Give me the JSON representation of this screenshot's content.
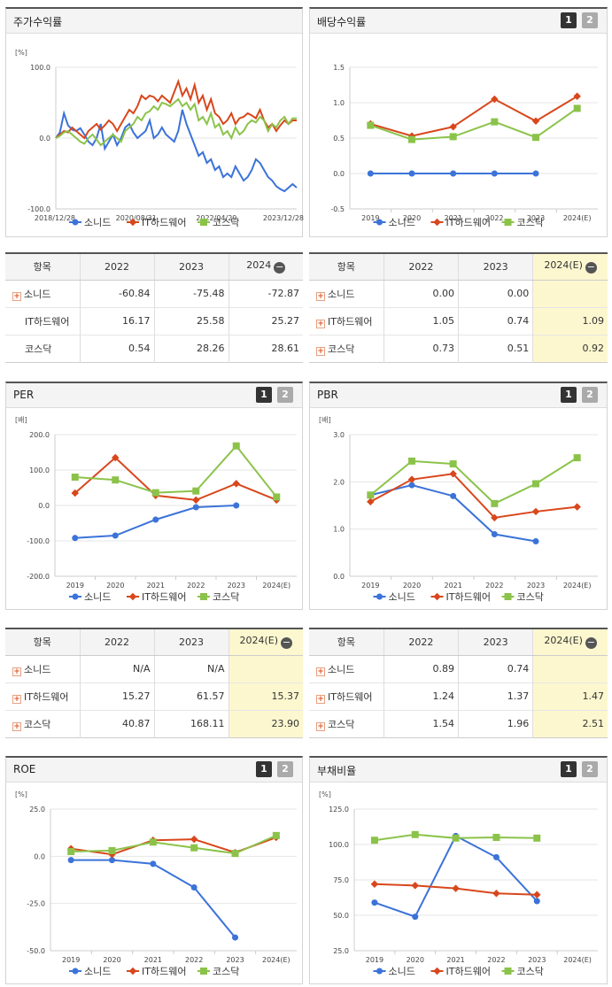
{
  "colors": {
    "series1": "#3b73d9",
    "series2": "#d8471c",
    "series3": "#8bc34a",
    "highlight": "#fdf7cf"
  },
  "legend_names": [
    "소니드",
    "IT하드웨어",
    "코스닥"
  ],
  "panels": {
    "stock": {
      "title": "주가수익률",
      "unit": "[%]"
    },
    "dividend": {
      "title": "배당수익률",
      "btn1": "1",
      "btn2": "2"
    },
    "per": {
      "title": "PER",
      "unit": "[배]",
      "btn1": "1",
      "btn2": "2"
    },
    "pbr": {
      "title": "PBR",
      "unit": "[배]",
      "btn1": "1",
      "btn2": "2"
    },
    "roe": {
      "title": "ROE",
      "unit": "[%]",
      "btn1": "1",
      "btn2": "2"
    },
    "debt": {
      "title": "부채비율",
      "unit": "[%]",
      "btn1": "1",
      "btn2": "2"
    }
  },
  "tables": {
    "stock": {
      "headers": [
        "항목",
        "2022",
        "2023",
        "2024"
      ],
      "rows": [
        {
          "name": "소니드",
          "plus": true,
          "vals": [
            "-60.84",
            "-75.48",
            "-72.87"
          ]
        },
        {
          "name": "IT하드웨어",
          "plus": false,
          "vals": [
            "16.17",
            "25.58",
            "25.27"
          ]
        },
        {
          "name": "코스닥",
          "plus": false,
          "vals": [
            "0.54",
            "28.26",
            "28.61"
          ]
        }
      ]
    },
    "dividend": {
      "headers": [
        "항목",
        "2022",
        "2023",
        "2024(E)"
      ],
      "rows": [
        {
          "name": "소니드",
          "plus": true,
          "vals": [
            "0.00",
            "0.00",
            ""
          ]
        },
        {
          "name": "IT하드웨어",
          "plus": true,
          "vals": [
            "1.05",
            "0.74",
            "1.09"
          ]
        },
        {
          "name": "코스닥",
          "plus": true,
          "vals": [
            "0.73",
            "0.51",
            "0.92"
          ]
        }
      ]
    },
    "per": {
      "headers": [
        "항목",
        "2022",
        "2023",
        "2024(E)"
      ],
      "rows": [
        {
          "name": "소니드",
          "plus": true,
          "vals": [
            "N/A",
            "N/A",
            ""
          ]
        },
        {
          "name": "IT하드웨어",
          "plus": true,
          "vals": [
            "15.27",
            "61.57",
            "15.37"
          ]
        },
        {
          "name": "코스닥",
          "plus": true,
          "vals": [
            "40.87",
            "168.11",
            "23.90"
          ]
        }
      ]
    },
    "pbr": {
      "headers": [
        "항목",
        "2022",
        "2023",
        "2024(E)"
      ],
      "rows": [
        {
          "name": "소니드",
          "plus": true,
          "vals": [
            "0.89",
            "0.74",
            ""
          ]
        },
        {
          "name": "IT하드웨어",
          "plus": true,
          "vals": [
            "1.24",
            "1.37",
            "1.47"
          ]
        },
        {
          "name": "코스닥",
          "plus": true,
          "vals": [
            "1.54",
            "1.96",
            "2.51"
          ]
        }
      ]
    }
  },
  "chart_data": [
    {
      "id": "stock",
      "type": "line",
      "title": "주가수익률",
      "ylabel": "[%]",
      "ylim": [
        -100,
        100
      ],
      "yticks": [
        "100.0",
        "0.0",
        "-100.0"
      ],
      "xticks": [
        "2018/12/28",
        "2020/08/31",
        "2022/04/29",
        "2023/12/28"
      ],
      "series": [
        {
          "name": "소니드",
          "values": [
            0,
            8,
            35,
            18,
            12,
            10,
            14,
            5,
            -5,
            -10,
            0,
            20,
            -15,
            -5,
            5,
            -10,
            0,
            15,
            20,
            8,
            0,
            5,
            10,
            25,
            0,
            5,
            15,
            5,
            0,
            -5,
            10,
            40,
            20,
            5,
            -10,
            -25,
            -20,
            -35,
            -30,
            -45,
            -40,
            -55,
            -50,
            -55,
            -40,
            -50,
            -60,
            -55,
            -45,
            -30,
            -35,
            -45,
            -55,
            -60,
            -68,
            -72,
            -75,
            -70,
            -65,
            -70
          ]
        },
        {
          "name": "IT하드웨어",
          "values": [
            0,
            5,
            10,
            8,
            15,
            10,
            5,
            0,
            10,
            15,
            20,
            12,
            18,
            25,
            20,
            10,
            20,
            30,
            40,
            35,
            45,
            60,
            55,
            60,
            58,
            52,
            60,
            55,
            50,
            65,
            80,
            60,
            70,
            55,
            75,
            50,
            60,
            40,
            55,
            35,
            30,
            20,
            25,
            35,
            20,
            28,
            30,
            35,
            32,
            28,
            40,
            25,
            15,
            20,
            10,
            18,
            25,
            20,
            25,
            25
          ]
        },
        {
          "name": "코스닥",
          "values": [
            0,
            3,
            8,
            10,
            5,
            0,
            -5,
            -8,
            0,
            5,
            -2,
            -10,
            -5,
            0,
            5,
            0,
            -5,
            10,
            15,
            20,
            30,
            25,
            35,
            38,
            45,
            40,
            50,
            48,
            45,
            50,
            55,
            45,
            50,
            40,
            48,
            25,
            30,
            20,
            35,
            15,
            20,
            5,
            10,
            0,
            15,
            5,
            10,
            20,
            25,
            22,
            30,
            25,
            10,
            20,
            15,
            25,
            30,
            20,
            28,
            28
          ]
        }
      ]
    },
    {
      "id": "dividend",
      "type": "line",
      "title": "배당수익률",
      "ylim": [
        -0.5,
        1.5
      ],
      "yticks": [
        "1.5",
        "1.0",
        "0.5",
        "0.0",
        "-0.5"
      ],
      "categories": [
        "2019",
        "2020",
        "2021",
        "2022",
        "2023",
        "2024(E)"
      ],
      "series": [
        {
          "name": "소니드",
          "values": [
            0,
            0,
            0,
            0,
            0,
            null
          ]
        },
        {
          "name": "IT하드웨어",
          "values": [
            0.7,
            0.53,
            0.66,
            1.05,
            0.74,
            1.09
          ]
        },
        {
          "name": "코스닥",
          "values": [
            0.68,
            0.48,
            0.52,
            0.73,
            0.51,
            0.92
          ]
        }
      ]
    },
    {
      "id": "per",
      "type": "line",
      "title": "PER",
      "ylabel": "[배]",
      "ylim": [
        -200,
        200
      ],
      "yticks": [
        "200.0",
        "100.0",
        "0.0",
        "-100.0",
        "-200.0"
      ],
      "categories": [
        "2019",
        "2020",
        "2021",
        "2022",
        "2023",
        "2024(E)"
      ],
      "series": [
        {
          "name": "소니드",
          "values": [
            -92,
            -85,
            -40,
            -5,
            0,
            null
          ]
        },
        {
          "name": "IT하드웨어",
          "values": [
            35,
            135,
            28,
            15.27,
            61.57,
            15.37
          ]
        },
        {
          "name": "코스닥",
          "values": [
            80,
            72,
            36,
            40.87,
            168.11,
            23.9
          ]
        }
      ]
    },
    {
      "id": "pbr",
      "type": "line",
      "title": "PBR",
      "ylabel": "[배]",
      "ylim": [
        0,
        3
      ],
      "yticks": [
        "3.0",
        "2.0",
        "1.0",
        "0.0"
      ],
      "categories": [
        "2019",
        "2020",
        "2021",
        "2022",
        "2023",
        "2024(E)"
      ],
      "series": [
        {
          "name": "소니드",
          "values": [
            1.72,
            1.93,
            1.7,
            0.89,
            0.74,
            null
          ]
        },
        {
          "name": "IT하드웨어",
          "values": [
            1.58,
            2.05,
            2.17,
            1.24,
            1.37,
            1.47
          ]
        },
        {
          "name": "코스닥",
          "values": [
            1.72,
            2.44,
            2.38,
            1.54,
            1.96,
            2.51
          ]
        }
      ]
    },
    {
      "id": "roe",
      "type": "line",
      "title": "ROE",
      "ylabel": "[%]",
      "ylim": [
        -50,
        25
      ],
      "yticks": [
        "25.0",
        "0.0",
        "-25.0",
        "-50.0"
      ],
      "categories": [
        "2019",
        "2020",
        "2021",
        "2022",
        "2023",
        "2024(E)"
      ],
      "series": [
        {
          "name": "소니드",
          "values": [
            -2,
            -2,
            -4,
            -16.5,
            -43,
            null
          ]
        },
        {
          "name": "IT하드웨어",
          "values": [
            4,
            1,
            8.5,
            9,
            2,
            10
          ]
        },
        {
          "name": "코스닥",
          "values": [
            2.5,
            3,
            7.5,
            4.5,
            1.5,
            11
          ]
        }
      ]
    },
    {
      "id": "debt",
      "type": "line",
      "title": "부채비율",
      "ylabel": "[%]",
      "ylim": [
        25,
        125
      ],
      "yticks": [
        "125.0",
        "100.0",
        "75.0",
        "50.0",
        "25.0"
      ],
      "categories": [
        "2019",
        "2020",
        "2021",
        "2022",
        "2023",
        "2024(E)"
      ],
      "series": [
        {
          "name": "소니드",
          "values": [
            59,
            49,
            106,
            91,
            60,
            null
          ]
        },
        {
          "name": "IT하드웨어",
          "values": [
            72,
            71,
            69,
            65.5,
            64.5,
            null
          ]
        },
        {
          "name": "코스닥",
          "values": [
            103,
            107,
            104.5,
            105,
            104.5,
            null
          ]
        }
      ]
    }
  ]
}
